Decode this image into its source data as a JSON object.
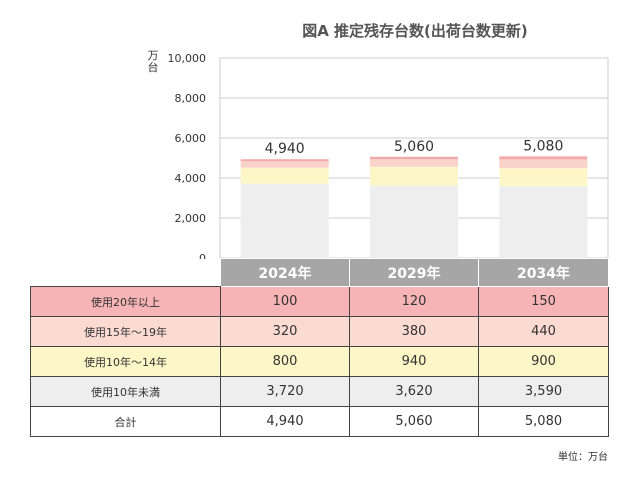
{
  "chart_data": {
    "type": "bar",
    "stacked": true,
    "title": "図A 推定残存台数(出荷台数更新)",
    "ylabel": "万台",
    "unit_note": "単位：万台",
    "categories": [
      "2024年",
      "2029年",
      "2034年"
    ],
    "ylim": [
      0,
      10000
    ],
    "yticks": [
      "0",
      "2,000",
      "4,000",
      "6,000",
      "8,000",
      "10,000"
    ],
    "grid": true,
    "series": [
      {
        "name": "使用10年未満",
        "values": [
          3720,
          3620,
          3590
        ],
        "color": "#eeeeee"
      },
      {
        "name": "使用10年～14年",
        "values": [
          800,
          940,
          900
        ],
        "color": "#fdf6c7"
      },
      {
        "name": "使用15年～19年",
        "values": [
          320,
          380,
          440
        ],
        "color": "#f9d2c9"
      },
      {
        "name": "使用20年以上",
        "values": [
          100,
          120,
          150
        ],
        "color": "#f3a9ac"
      }
    ],
    "totals": {
      "name": "合計",
      "values": [
        4940,
        5060,
        5080
      ],
      "labels": [
        "4,940",
        "5,060",
        "5,080"
      ]
    },
    "table_rows": [
      {
        "label": "使用20年以上",
        "cells": [
          "100",
          "120",
          "150"
        ],
        "bg": "#f6b4b6"
      },
      {
        "label": "使用15年～19年",
        "cells": [
          "320",
          "380",
          "440"
        ],
        "bg": "#fbdad2"
      },
      {
        "label": "使用10年～14年",
        "cells": [
          "800",
          "940",
          "900"
        ],
        "bg": "#fdf6c7"
      },
      {
        "label": "使用10年未満",
        "cells": [
          "3,720",
          "3,620",
          "3,590"
        ],
        "bg": "#eeeeee"
      },
      {
        "label": "合計",
        "cells": [
          "4,940",
          "5,060",
          "5,080"
        ],
        "bg": "#ffffff"
      }
    ]
  }
}
